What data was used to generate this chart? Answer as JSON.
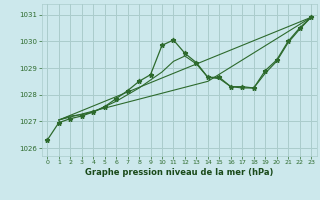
{
  "xlabel": "Graphe pression niveau de la mer (hPa)",
  "xlim": [
    -0.5,
    23.5
  ],
  "ylim": [
    1025.7,
    1031.4
  ],
  "yticks": [
    1026,
    1027,
    1028,
    1029,
    1030,
    1031
  ],
  "xticks": [
    0,
    1,
    2,
    3,
    4,
    5,
    6,
    7,
    8,
    9,
    10,
    11,
    12,
    13,
    14,
    15,
    16,
    17,
    18,
    19,
    20,
    21,
    22,
    23
  ],
  "bg_color": "#cce8ec",
  "grid_color": "#aacccc",
  "line_color": "#2d6a2d",
  "line1": {
    "x": [
      0,
      1,
      2,
      3,
      4,
      5,
      6,
      7,
      8,
      9,
      10,
      11,
      12,
      13,
      14,
      15,
      16,
      17,
      18,
      19,
      20,
      21,
      22,
      23
    ],
    "y": [
      1026.3,
      1026.95,
      1027.1,
      1027.2,
      1027.35,
      1027.55,
      1027.85,
      1028.15,
      1028.5,
      1028.75,
      1029.85,
      1030.05,
      1029.55,
      1029.2,
      1028.65,
      1028.65,
      1028.3,
      1028.3,
      1028.25,
      1028.9,
      1029.3,
      1030.0,
      1030.5,
      1030.9
    ]
  },
  "line2": {
    "x": [
      1,
      2,
      3,
      4,
      5,
      6,
      7,
      8,
      9,
      10,
      11,
      12,
      13,
      14,
      15,
      16,
      17,
      18,
      19,
      20,
      21,
      22,
      23
    ],
    "y": [
      1027.05,
      1027.2,
      1027.25,
      1027.35,
      1027.55,
      1027.75,
      1028.0,
      1028.25,
      1028.55,
      1028.85,
      1029.25,
      1029.45,
      1029.15,
      1028.65,
      1028.6,
      1028.3,
      1028.25,
      1028.25,
      1028.8,
      1029.25,
      1029.95,
      1030.45,
      1030.9
    ]
  },
  "line3": {
    "x": [
      1,
      23
    ],
    "y": [
      1027.05,
      1030.9
    ]
  },
  "line4": {
    "x": [
      1,
      14,
      23
    ],
    "y": [
      1027.05,
      1028.5,
      1030.9
    ]
  }
}
